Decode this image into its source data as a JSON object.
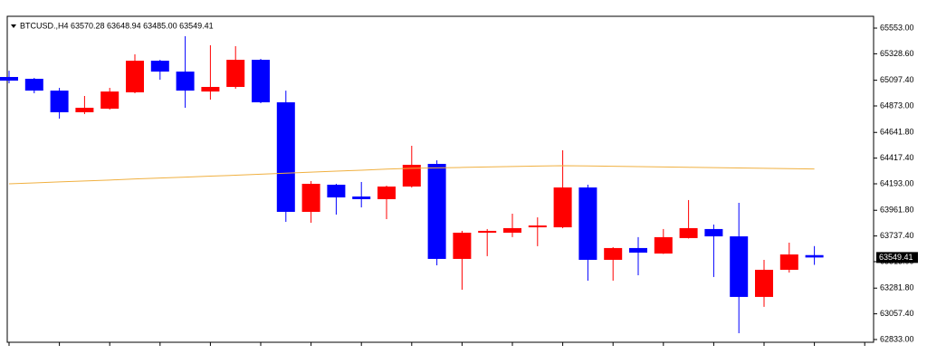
{
  "chart_data": {
    "type": "candlestick",
    "title": "BTCUSD.,H4  63570.28 63648.94 63485.00 63549.41",
    "up_color": "#ff0000",
    "down_color": "#0000ff",
    "ylim": [
      62809,
      65656
    ],
    "yticks": [
      {
        "value": 65553,
        "label": "65553.00"
      },
      {
        "value": 65328.6,
        "label": "65328.60"
      },
      {
        "value": 65097.4,
        "label": "65097.40"
      },
      {
        "value": 64873,
        "label": "64873.00"
      },
      {
        "value": 64641.8,
        "label": "64641.80"
      },
      {
        "value": 64417.4,
        "label": "64417.40"
      },
      {
        "value": 64193,
        "label": "64193.00"
      },
      {
        "value": 63961.8,
        "label": "63961.80"
      },
      {
        "value": 63737.4,
        "label": "63737.40"
      },
      {
        "value": 63513,
        "label": "63513.00"
      },
      {
        "value": 63281.8,
        "label": "63281.80"
      },
      {
        "value": 63057.4,
        "label": "63057.40"
      },
      {
        "value": 62833,
        "label": "62833.00"
      }
    ],
    "candles": [
      {
        "open": 65126,
        "high": 65181,
        "low": 65071,
        "close": 65094
      },
      {
        "open": 65110,
        "high": 65118,
        "low": 64984,
        "close": 65007
      },
      {
        "open": 65007,
        "high": 65031,
        "low": 64762,
        "close": 64818
      },
      {
        "open": 64818,
        "high": 64960,
        "low": 64802,
        "close": 64857
      },
      {
        "open": 64849,
        "high": 65031,
        "low": 64841,
        "close": 64999
      },
      {
        "open": 64992,
        "high": 65324,
        "low": 64984,
        "close": 65268
      },
      {
        "open": 65268,
        "high": 65276,
        "low": 65102,
        "close": 65173
      },
      {
        "open": 65173,
        "high": 65482,
        "low": 64857,
        "close": 65007
      },
      {
        "open": 64999,
        "high": 65403,
        "low": 64928,
        "close": 65039
      },
      {
        "open": 65039,
        "high": 65395,
        "low": 65023,
        "close": 65276
      },
      {
        "open": 65276,
        "high": 65284,
        "low": 64897,
        "close": 64905
      },
      {
        "open": 64905,
        "high": 65007,
        "low": 63861,
        "close": 63948
      },
      {
        "open": 63948,
        "high": 64217,
        "low": 63853,
        "close": 64193
      },
      {
        "open": 64185,
        "high": 64193,
        "low": 63924,
        "close": 64074
      },
      {
        "open": 64082,
        "high": 64209,
        "low": 63987,
        "close": 64059
      },
      {
        "open": 64059,
        "high": 64177,
        "low": 63885,
        "close": 64169
      },
      {
        "open": 64169,
        "high": 64525,
        "low": 64160,
        "close": 64359
      },
      {
        "open": 64367,
        "high": 64398,
        "low": 63481,
        "close": 63537
      },
      {
        "open": 63537,
        "high": 63782,
        "low": 63268,
        "close": 63766
      },
      {
        "open": 63766,
        "high": 63798,
        "low": 63561,
        "close": 63782
      },
      {
        "open": 63766,
        "high": 63932,
        "low": 63727,
        "close": 63806
      },
      {
        "open": 63813,
        "high": 63900,
        "low": 63648,
        "close": 63829
      },
      {
        "open": 63813,
        "high": 64486,
        "low": 63805,
        "close": 64161
      },
      {
        "open": 64161,
        "high": 64185,
        "low": 63347,
        "close": 63529
      },
      {
        "open": 63529,
        "high": 63640,
        "low": 63347,
        "close": 63632
      },
      {
        "open": 63632,
        "high": 63727,
        "low": 63394,
        "close": 63592
      },
      {
        "open": 63584,
        "high": 63798,
        "low": 63580,
        "close": 63727
      },
      {
        "open": 63719,
        "high": 64051,
        "low": 63715,
        "close": 63806
      },
      {
        "open": 63798,
        "high": 63837,
        "low": 63379,
        "close": 63734
      },
      {
        "open": 63734,
        "high": 64027,
        "low": 62888,
        "close": 63205
      },
      {
        "open": 63205,
        "high": 63529,
        "low": 63118,
        "close": 63442
      },
      {
        "open": 63442,
        "high": 63679,
        "low": 63418,
        "close": 63576
      },
      {
        "open": 63570.28,
        "high": 63648.94,
        "low": 63485.0,
        "close": 63549.41
      }
    ],
    "ma": {
      "color": "#f0b040",
      "values": [
        64193,
        64201,
        64210,
        64218,
        64226,
        64235,
        64243,
        64251,
        64260,
        64268,
        64277,
        64286,
        64295,
        64304,
        64312,
        64321,
        64328,
        64332,
        64336,
        64340,
        64344,
        64348,
        64351,
        64349,
        64346,
        64343,
        64340,
        64337,
        64334,
        64331,
        64328,
        64325,
        64322
      ]
    }
  }
}
